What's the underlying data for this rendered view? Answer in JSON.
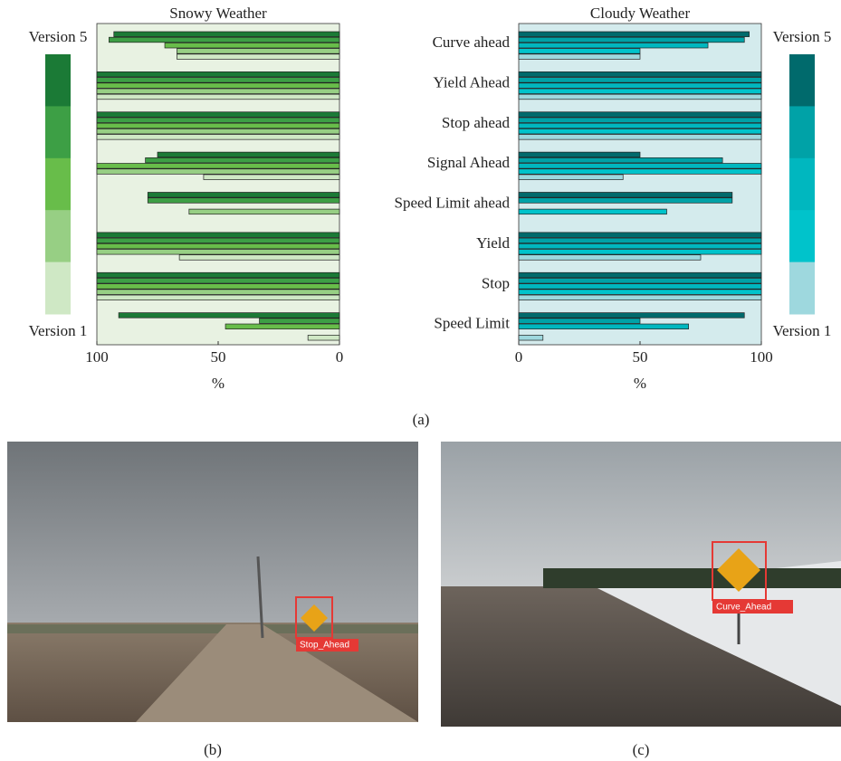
{
  "chart_data": [
    {
      "type": "bar",
      "orientation": "horizontal",
      "title": "Snowy Weather",
      "xlabel": "%",
      "xlim": [
        100,
        0
      ],
      "xticks": [
        100,
        50,
        0
      ],
      "background": "#e8f2e2",
      "series": [
        {
          "name": "Version 5",
          "color": "#1b7a36",
          "values": [
            93,
            100,
            100,
            75,
            79,
            100,
            100,
            91
          ]
        },
        {
          "color": "#3d9f45",
          "values": [
            95,
            100,
            100,
            80,
            79,
            100,
            100,
            33
          ]
        },
        {
          "color": "#68bd4a",
          "values": [
            72,
            100,
            100,
            100,
            0,
            100,
            100,
            47
          ]
        },
        {
          "color": "#97cf84",
          "values": [
            67,
            100,
            100,
            100,
            62,
            100,
            100,
            0
          ]
        },
        {
          "name": "Version 1",
          "color": "#cfe8c5",
          "values": [
            67,
            100,
            100,
            56,
            0,
            66,
            100,
            13
          ]
        }
      ]
    },
    {
      "type": "bar",
      "orientation": "horizontal",
      "title": "Cloudy Weather",
      "xlabel": "%",
      "xlim": [
        0,
        100
      ],
      "xticks": [
        0,
        50,
        100
      ],
      "background": "#d4ebed",
      "categories": [
        "Curve ahead",
        "Yield Ahead",
        "Stop ahead",
        "Signal Ahead",
        "Speed Limit ahead",
        "Yield",
        "Stop",
        "Speed Limit"
      ],
      "series": [
        {
          "name": "Version 5",
          "color": "#006a6c",
          "values": [
            95,
            100,
            100,
            50,
            88,
            100,
            100,
            93
          ]
        },
        {
          "color": "#00a2a7",
          "values": [
            93,
            100,
            100,
            84,
            88,
            100,
            100,
            50
          ]
        },
        {
          "color": "#00b7bf",
          "values": [
            78,
            100,
            100,
            100,
            0,
            100,
            100,
            70
          ]
        },
        {
          "color": "#00c3cb",
          "values": [
            50,
            100,
            100,
            100,
            61,
            100,
            100,
            0
          ]
        },
        {
          "name": "Version 1",
          "color": "#9ed8de",
          "values": [
            50,
            100,
            100,
            43,
            0,
            75,
            100,
            10
          ]
        }
      ]
    }
  ],
  "caption_a": "(a)",
  "photos": [
    {
      "caption": "(b)",
      "detection": "Stop_Ahead"
    },
    {
      "caption": "(c)",
      "detection": "Curve_Ahead"
    }
  ]
}
